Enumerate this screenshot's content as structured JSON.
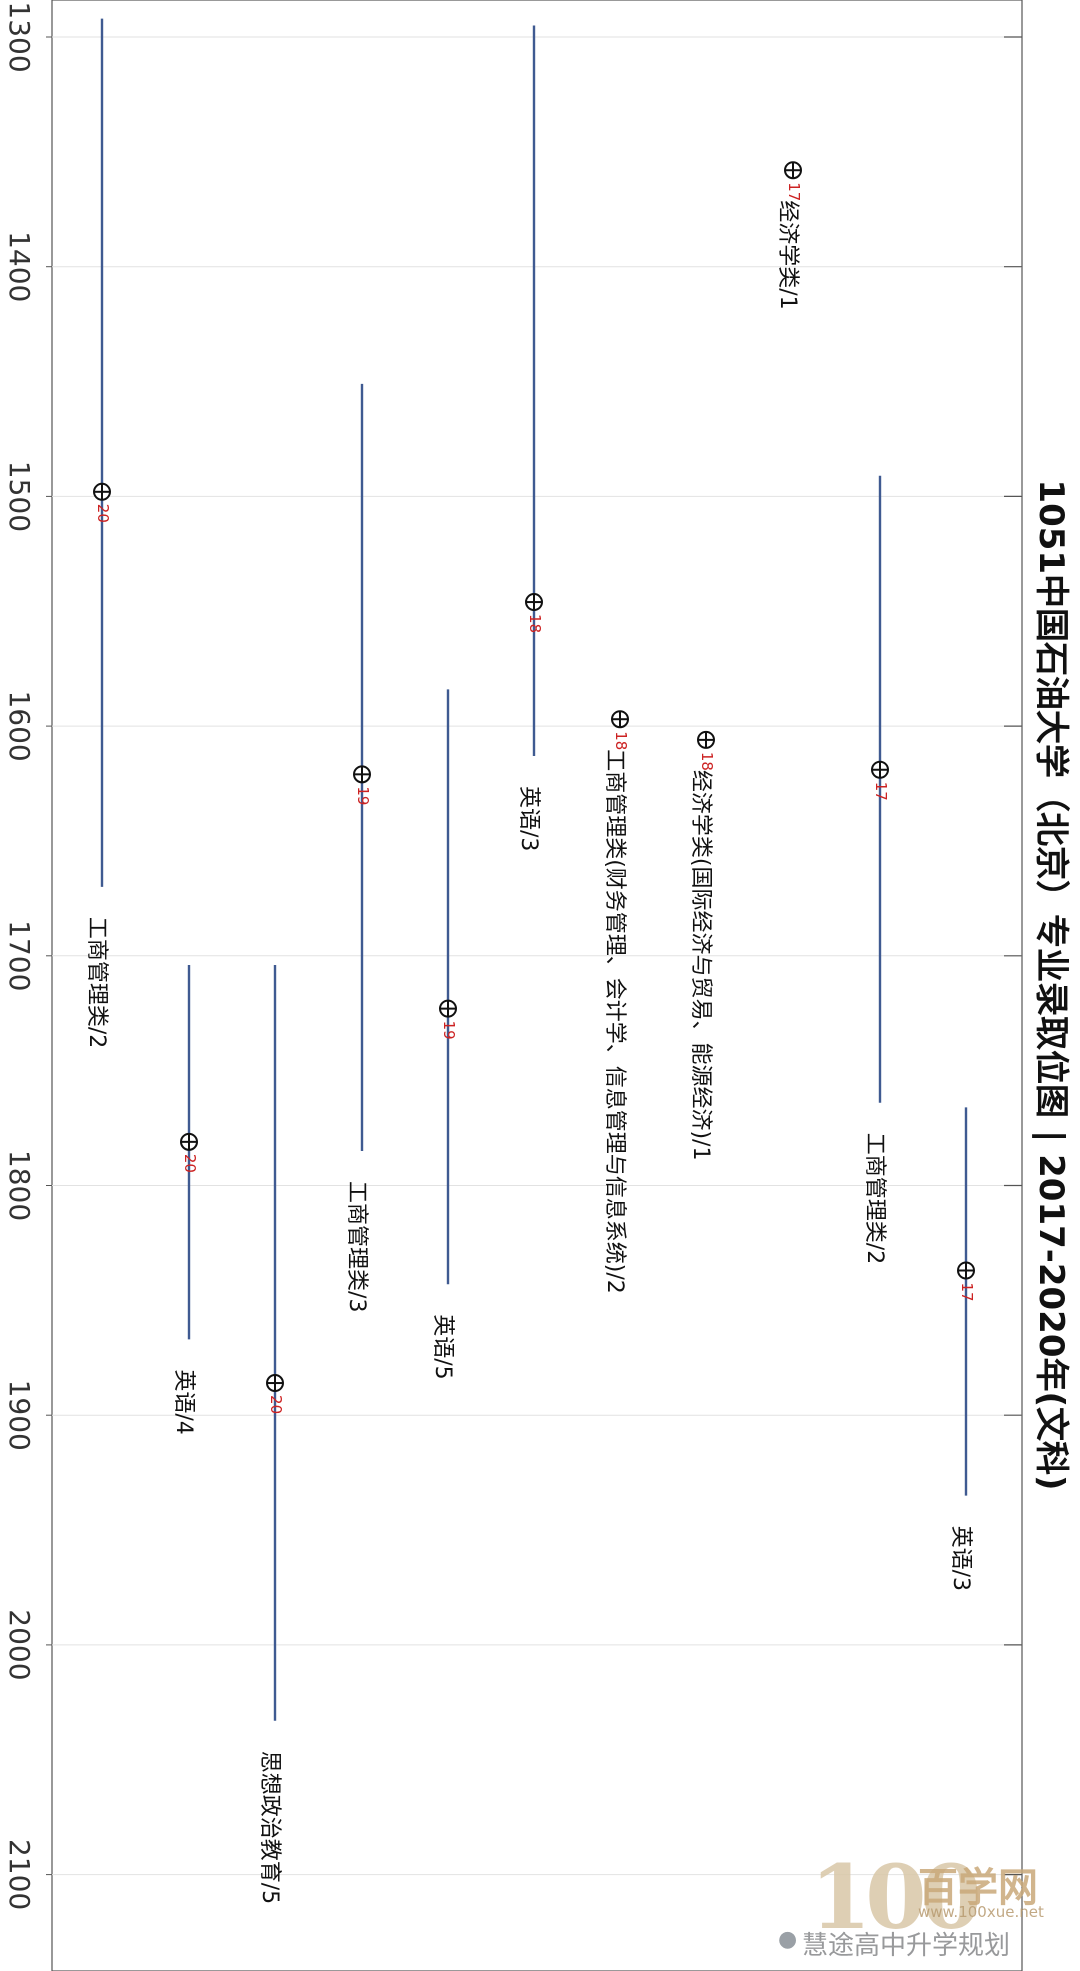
{
  "chart_data": {
    "type": "range",
    "title": "1051中国石油大学（北京）专业录取位图 | 2017-2020年(文科)",
    "yticks": [
      1300,
      1400,
      1500,
      1600,
      1700,
      1800,
      1900,
      2000,
      2100
    ],
    "ylim": [
      1285,
      2140
    ],
    "grid": true,
    "series": [
      {
        "label": "工商管理类/2",
        "min": 1292,
        "max": 1670,
        "point": 1498,
        "year": "20"
      },
      {
        "label": "英语/4",
        "min": 1704,
        "max": 1867,
        "point": 1781,
        "year": "20"
      },
      {
        "label": "思想政治教育/5",
        "min": 1704,
        "max": 2033,
        "point": 1886,
        "year": "20"
      },
      {
        "label": "工商管理类/3",
        "min": 1451,
        "max": 1785,
        "point": 1621,
        "year": "19"
      },
      {
        "label": "英语/5",
        "min": 1584,
        "max": 1843,
        "point": 1723,
        "year": "19"
      },
      {
        "label": "英语/3",
        "min": 1295,
        "max": 1613,
        "point": 1546,
        "year": "18"
      },
      {
        "label": "工商管理类(财务管理、会计学、信息管理与信息系统)/2",
        "min": null,
        "max": null,
        "point": 1597,
        "year": "18"
      },
      {
        "label": "经济学类(国际经济与贸易、能源经济)/1",
        "min": null,
        "max": null,
        "point": 1606,
        "year": "18"
      },
      {
        "label": "经济学类/1",
        "min": null,
        "max": null,
        "point": 1358,
        "year": "17"
      },
      {
        "label": "工商管理类/2",
        "min": 1491,
        "max": 1764,
        "point": 1619,
        "year": "17"
      },
      {
        "label": "英语/3",
        "min": 1766,
        "max": 1935,
        "point": 1837,
        "year": "17"
      }
    ]
  },
  "watermark": {
    "brand_text": "百学网",
    "brand_number": "100",
    "url_text": "www.100xue.net",
    "caption_text": "慧途高中升学规划"
  }
}
